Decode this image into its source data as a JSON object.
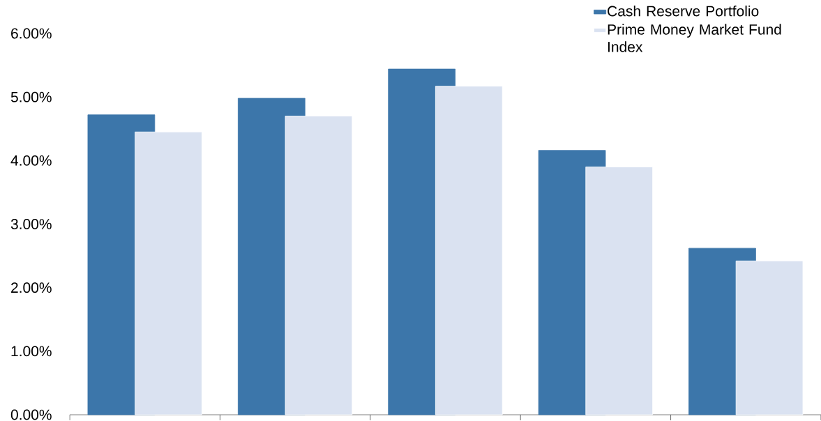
{
  "chart_data": {
    "type": "bar",
    "categories": [
      null,
      null,
      null,
      null,
      null
    ],
    "series": [
      {
        "name": "Cash Reserve Portfolio",
        "color": "#3c76aa",
        "values": [
          4.72,
          4.98,
          5.44,
          4.16,
          2.62
        ]
      },
      {
        "name": "Prime Money Market Fund Index",
        "color": "#dae2f1",
        "values": [
          4.45,
          4.7,
          5.17,
          3.9,
          2.42
        ]
      }
    ],
    "ylim": [
      0,
      6
    ],
    "yticks": [
      {
        "value": 0,
        "label": "0.00%"
      },
      {
        "value": 1,
        "label": "1.00%"
      },
      {
        "value": 2,
        "label": "2.00%"
      },
      {
        "value": 3,
        "label": "3.00%"
      },
      {
        "value": 4,
        "label": "4.00%"
      },
      {
        "value": 5,
        "label": "5.00%"
      },
      {
        "value": 6,
        "label": "6.00%"
      }
    ],
    "legend": "top right",
    "grid": false
  }
}
